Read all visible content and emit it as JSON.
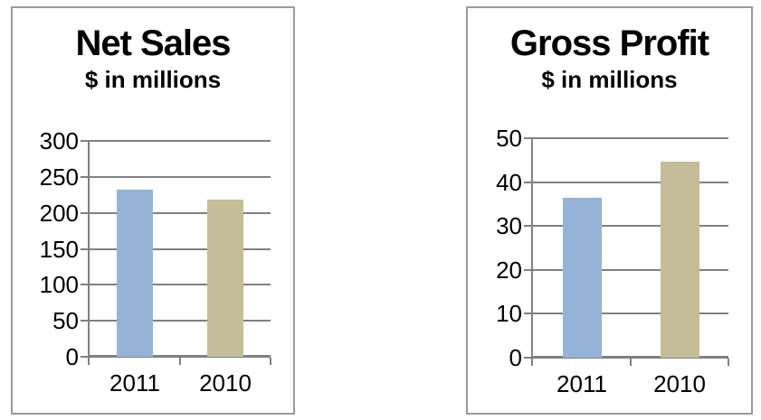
{
  "chart_data": [
    {
      "type": "bar",
      "title": "Net Sales",
      "subtitle": "$ in millions",
      "categories": [
        "2011",
        "2010"
      ],
      "values": [
        232,
        218
      ],
      "bar_colors": [
        "#95B3D7",
        "#C4BD97"
      ],
      "ylim": [
        0,
        300
      ],
      "yticks": [
        300,
        250,
        200,
        150,
        100,
        50,
        0
      ],
      "grid": "horizontal",
      "legend": "none"
    },
    {
      "type": "bar",
      "title": "Gross Profit",
      "subtitle": "$ in millions",
      "categories": [
        "2011",
        "2010"
      ],
      "values": [
        36.4,
        44.6
      ],
      "bar_colors": [
        "#95B3D7",
        "#C4BD97"
      ],
      "ylim": [
        0,
        50
      ],
      "yticks": [
        50,
        40,
        30,
        20,
        10,
        0
      ],
      "grid": "horizontal",
      "legend": "none"
    }
  ],
  "colors": {
    "bar_blue": "#95B3D7",
    "bar_tan": "#C4BD97",
    "gridline": "#808080",
    "panel_border": "#9A9A9A",
    "text": "#000000"
  }
}
